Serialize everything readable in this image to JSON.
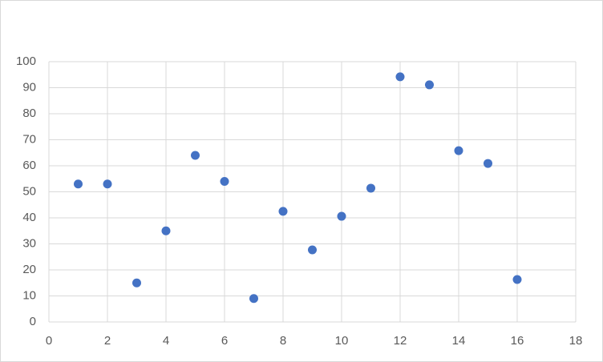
{
  "chart_data": {
    "type": "scatter",
    "x": [
      1,
      2,
      3,
      4,
      5,
      6,
      7,
      8,
      9,
      10,
      11,
      12,
      13,
      14,
      15,
      16
    ],
    "y": [
      53,
      53,
      15,
      35,
      64,
      54,
      9,
      42.5,
      27.7,
      40.6,
      51.4,
      94.2,
      91.1,
      65.8,
      60.9,
      16.3
    ],
    "color": "#4472c4",
    "xlim": [
      0,
      18
    ],
    "xticks": [
      0,
      2,
      4,
      6,
      8,
      10,
      12,
      14,
      16,
      18
    ],
    "ylim": [
      0,
      100
    ],
    "yticks": [
      0,
      10,
      20,
      30,
      40,
      50,
      60,
      70,
      80,
      90,
      100
    ],
    "grid": true
  }
}
